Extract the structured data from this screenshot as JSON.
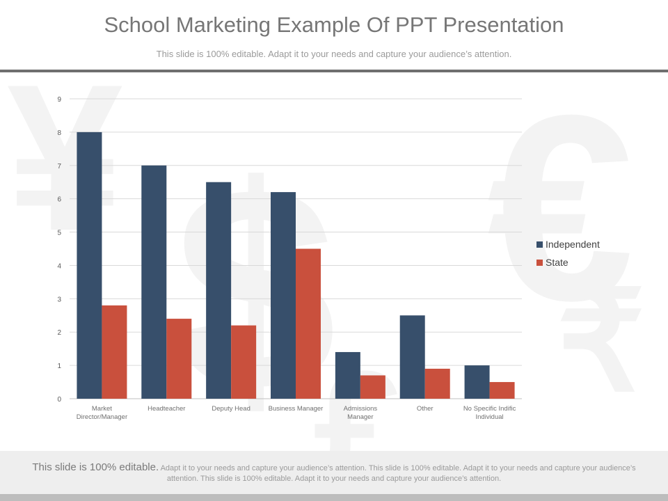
{
  "slide": {
    "title": "School Marketing Example Of PPT Presentation",
    "subtitle": "This slide is 100% editable. Adapt it to your needs and capture your audience’s attention."
  },
  "footer": {
    "lead": "This slide is 100% editable.",
    "body": " Adapt it to your needs and capture your audience’s attention. This slide is 100% editable. Adapt it to your needs and capture your audience’s attention. This slide is 100% editable. Adapt it to your needs and capture your audience’s attention."
  },
  "colors": {
    "independent": "#374f6b",
    "state": "#c9503d",
    "grid": "#d9d9d9",
    "axis": "#bfbfbf"
  },
  "chart_data": {
    "type": "bar",
    "title": "",
    "xlabel": "",
    "ylabel": "",
    "ylim": [
      0,
      9
    ],
    "yticks": [
      0,
      1,
      2,
      3,
      4,
      5,
      6,
      7,
      8,
      9
    ],
    "grid": true,
    "legend_position": "right",
    "categories": [
      [
        "Market",
        "Director/Manager"
      ],
      [
        "Headteacher"
      ],
      [
        "Deputy Head"
      ],
      [
        "Business Manager"
      ],
      [
        "Admissions",
        "Manager"
      ],
      [
        "Other"
      ],
      [
        "No Specific Indific",
        "Individual"
      ]
    ],
    "series": [
      {
        "name": "Independent",
        "values": [
          8,
          7,
          6.5,
          6.2,
          1.4,
          2.5,
          1
        ]
      },
      {
        "name": "State",
        "values": [
          2.8,
          2.4,
          2.2,
          4.5,
          0.7,
          0.9,
          0.5
        ]
      }
    ]
  }
}
